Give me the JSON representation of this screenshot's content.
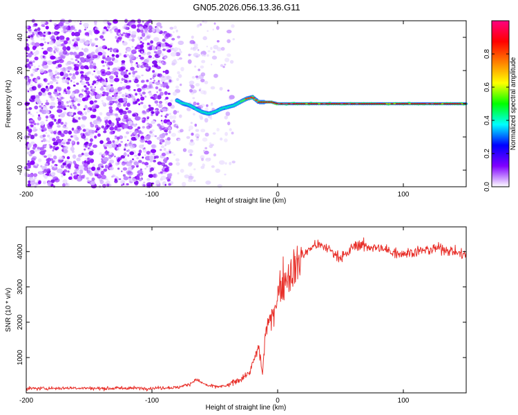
{
  "figure_title": "GN05.2026.056.13.36.G11",
  "chart_data": [
    {
      "type": "heatmap",
      "xlabel": "Height of straight line (km)",
      "ylabel": "Frequency (Hz)",
      "xlim": [
        -200,
        150
      ],
      "ylim": [
        -50,
        50
      ],
      "xticks": [
        "-200",
        "-100",
        "0",
        "100"
      ],
      "xtick_values": [
        -200,
        -100,
        0,
        100
      ],
      "yticks": [
        "-40",
        "-20",
        "0",
        "20",
        "40"
      ],
      "ytick_values": [
        -40,
        -20,
        0,
        20,
        40
      ],
      "noise_region_x": [
        -200,
        -35
      ],
      "signal_track": {
        "x": [
          -80,
          -75,
          -70,
          -65,
          -60,
          -55,
          -50,
          -45,
          -40,
          -35,
          -30,
          -25,
          -20,
          -15,
          -10,
          -5,
          0,
          10,
          20,
          40,
          60,
          80,
          100,
          120,
          150
        ],
        "y": [
          2,
          0,
          -1,
          -3,
          -5,
          -6,
          -5,
          -3,
          -2,
          -1,
          1,
          3,
          4,
          1,
          1,
          1,
          0,
          0,
          0,
          0,
          0,
          0,
          0,
          0,
          0
        ]
      },
      "colorbar": {
        "label": "Normalized spectral amplitude",
        "range": [
          0,
          1
        ],
        "ticks": [
          "0.0",
          "0.2",
          "0.4",
          "0.6",
          "0.8"
        ],
        "tick_values": [
          0.0,
          0.2,
          0.4,
          0.6,
          0.8
        ],
        "colormap": [
          "#ffffff",
          "#8000ff",
          "#0000ff",
          "#00ffff",
          "#00ff00",
          "#ffff00",
          "#ff8000",
          "#ff0000",
          "#ff0080"
        ]
      }
    },
    {
      "type": "line",
      "xlabel": "Height of straight line (km)",
      "ylabel": "SNR (10 * v/v)",
      "xlim": [
        -200,
        150
      ],
      "ylim": [
        0,
        4700
      ],
      "xticks": [
        "-200",
        "-100",
        "0",
        "100"
      ],
      "xtick_values": [
        -200,
        -100,
        0,
        100
      ],
      "yticks": [
        "1000",
        "2000",
        "3000",
        "4000"
      ],
      "ytick_values": [
        1000,
        2000,
        3000,
        4000
      ],
      "color": "#e8302a",
      "series": [
        {
          "x": [
            -200,
            -180,
            -160,
            -140,
            -120,
            -100,
            -90,
            -80,
            -70,
            -65,
            -60,
            -55,
            -50,
            -45,
            -40,
            -35,
            -30,
            -25,
            -22,
            -18,
            -15,
            -13,
            -12,
            -10,
            -8,
            -5,
            -3,
            0,
            5,
            10,
            15,
            20,
            25,
            30,
            35,
            40,
            45,
            50,
            55,
            60,
            65,
            70,
            80,
            90,
            100,
            110,
            120,
            130,
            140,
            150
          ],
          "y": [
            120,
            130,
            140,
            125,
            135,
            130,
            150,
            150,
            250,
            380,
            280,
            200,
            180,
            180,
            200,
            300,
            380,
            500,
            600,
            1000,
            1300,
            800,
            500,
            1600,
            2000,
            2000,
            2400,
            2800,
            3200,
            3400,
            3600,
            3900,
            4050,
            4200,
            4150,
            4100,
            3950,
            3850,
            3900,
            4150,
            4200,
            4150,
            4100,
            4000,
            3950,
            4000,
            4050,
            4100,
            4000,
            3900
          ]
        }
      ]
    }
  ]
}
